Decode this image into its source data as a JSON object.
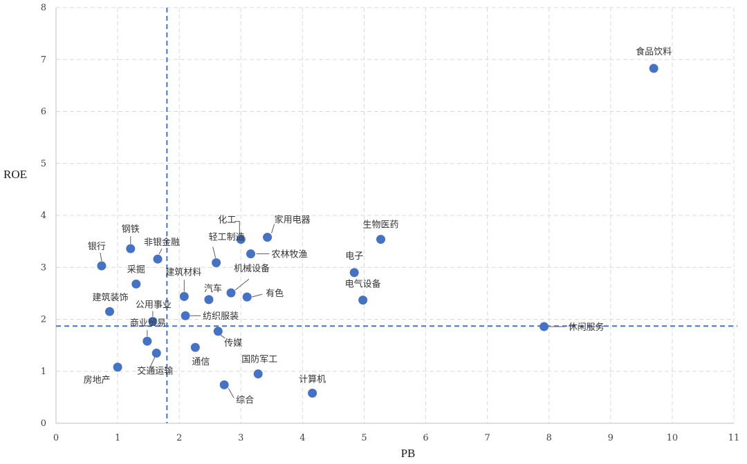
{
  "chart_data": {
    "type": "scatter",
    "xlabel": "PB",
    "ylabel": "ROE",
    "xlim": [
      0,
      11
    ],
    "ylim": [
      0,
      8
    ],
    "xticks": [
      "0",
      "1",
      "2",
      "3",
      "4",
      "5",
      "6",
      "7",
      "8",
      "9",
      "10",
      "11"
    ],
    "yticks": [
      "0",
      "1",
      "2",
      "3",
      "4",
      "5",
      "6",
      "7",
      "8"
    ],
    "grid": true,
    "point_color": "#4472c4",
    "reference_lines": {
      "x": 1.8,
      "y": 1.87,
      "color": "#4472c4",
      "style": "dashed"
    },
    "points": [
      {
        "label": "食品饮料",
        "x": 9.7,
        "y": 6.83
      },
      {
        "label": "休闲服务",
        "x": 7.92,
        "y": 1.86
      },
      {
        "label": "生物医药",
        "x": 5.27,
        "y": 3.54
      },
      {
        "label": "电子",
        "x": 4.84,
        "y": 2.9
      },
      {
        "label": "电气设备",
        "x": 4.98,
        "y": 2.37
      },
      {
        "label": "计算机",
        "x": 4.16,
        "y": 0.58
      },
      {
        "label": "家用电器",
        "x": 3.43,
        "y": 3.58
      },
      {
        "label": "化工",
        "x": 3.0,
        "y": 3.54
      },
      {
        "label": "农林牧渔",
        "x": 3.16,
        "y": 3.26
      },
      {
        "label": "轻工制造",
        "x": 2.6,
        "y": 3.09
      },
      {
        "label": "机械设备",
        "x": 2.84,
        "y": 2.51
      },
      {
        "label": "有色",
        "x": 3.1,
        "y": 2.43
      },
      {
        "label": "汽车",
        "x": 2.48,
        "y": 2.38
      },
      {
        "label": "建筑材料",
        "x": 2.08,
        "y": 2.44
      },
      {
        "label": "纺织服装",
        "x": 2.1,
        "y": 2.07
      },
      {
        "label": "传媒",
        "x": 2.63,
        "y": 1.77
      },
      {
        "label": "通信",
        "x": 2.26,
        "y": 1.46
      },
      {
        "label": "国防军工",
        "x": 3.28,
        "y": 0.95
      },
      {
        "label": "综合",
        "x": 2.73,
        "y": 0.74
      },
      {
        "label": "钢铁",
        "x": 1.21,
        "y": 3.36
      },
      {
        "label": "非银金融",
        "x": 1.65,
        "y": 3.16
      },
      {
        "label": "银行",
        "x": 0.74,
        "y": 3.03
      },
      {
        "label": "采掘",
        "x": 1.3,
        "y": 2.68
      },
      {
        "label": "建筑装饰",
        "x": 0.87,
        "y": 2.15
      },
      {
        "label": "公用事业",
        "x": 1.57,
        "y": 1.96
      },
      {
        "label": "商业贸易",
        "x": 1.48,
        "y": 1.58
      },
      {
        "label": "交通运输",
        "x": 1.63,
        "y": 1.35
      },
      {
        "label": "房地产",
        "x": 1.0,
        "y": 1.08
      }
    ]
  }
}
